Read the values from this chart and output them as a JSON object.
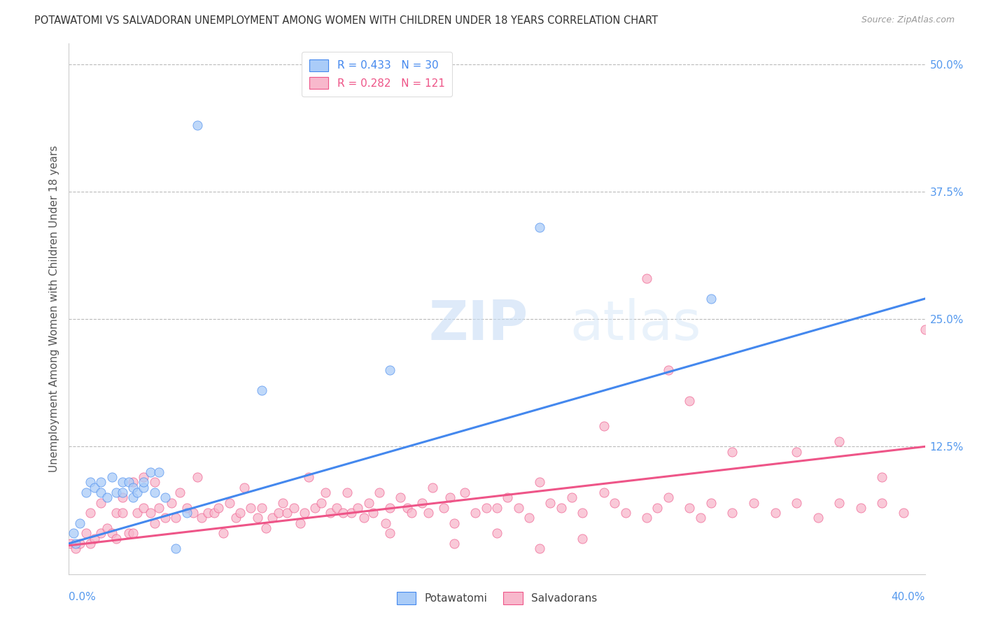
{
  "title": "POTAWATOMI VS SALVADORAN UNEMPLOYMENT AMONG WOMEN WITH CHILDREN UNDER 18 YEARS CORRELATION CHART",
  "source": "Source: ZipAtlas.com",
  "ylabel": "Unemployment Among Women with Children Under 18 years",
  "xlabel_bottom_left": "0.0%",
  "xlabel_bottom_right": "40.0%",
  "right_ytick_labels": [
    "50.0%",
    "37.5%",
    "25.0%",
    "12.5%"
  ],
  "right_ytick_values": [
    0.5,
    0.375,
    0.25,
    0.125
  ],
  "xlim": [
    0.0,
    0.4
  ],
  "ylim": [
    0.0,
    0.52
  ],
  "legend_blue_label": "R = 0.433   N = 30",
  "legend_pink_label": "R = 0.282   N = 121",
  "watermark_zip": "ZIP",
  "watermark_atlas": "atlas",
  "blue_color": "#aaccf8",
  "pink_color": "#f8b8cc",
  "blue_line_color": "#4488ee",
  "pink_line_color": "#ee5588",
  "background_color": "#ffffff",
  "grid_color": "#bbbbbb",
  "title_color": "#333333",
  "axis_label_color": "#5599ee",
  "blue_line_start_y": 0.03,
  "blue_line_end_y": 0.27,
  "pink_line_start_y": 0.028,
  "pink_line_end_y": 0.125,
  "potawatomi_x": [
    0.002,
    0.003,
    0.005,
    0.008,
    0.01,
    0.012,
    0.015,
    0.015,
    0.018,
    0.02,
    0.022,
    0.025,
    0.025,
    0.028,
    0.03,
    0.03,
    0.032,
    0.035,
    0.035,
    0.038,
    0.04,
    0.042,
    0.045,
    0.05,
    0.055,
    0.06,
    0.09,
    0.15,
    0.22,
    0.3
  ],
  "potawatomi_y": [
    0.04,
    0.03,
    0.05,
    0.08,
    0.09,
    0.085,
    0.08,
    0.09,
    0.075,
    0.095,
    0.08,
    0.09,
    0.08,
    0.09,
    0.075,
    0.085,
    0.08,
    0.085,
    0.09,
    0.1,
    0.08,
    0.1,
    0.075,
    0.025,
    0.06,
    0.44,
    0.18,
    0.2,
    0.34,
    0.27
  ],
  "salvadoran_x": [
    0.001,
    0.003,
    0.005,
    0.008,
    0.01,
    0.01,
    0.012,
    0.015,
    0.015,
    0.018,
    0.02,
    0.022,
    0.022,
    0.025,
    0.025,
    0.028,
    0.03,
    0.03,
    0.032,
    0.035,
    0.035,
    0.038,
    0.04,
    0.04,
    0.042,
    0.045,
    0.048,
    0.05,
    0.052,
    0.055,
    0.058,
    0.06,
    0.062,
    0.065,
    0.068,
    0.07,
    0.072,
    0.075,
    0.078,
    0.08,
    0.082,
    0.085,
    0.088,
    0.09,
    0.092,
    0.095,
    0.098,
    0.1,
    0.102,
    0.105,
    0.108,
    0.11,
    0.112,
    0.115,
    0.118,
    0.12,
    0.122,
    0.125,
    0.128,
    0.13,
    0.132,
    0.135,
    0.138,
    0.14,
    0.142,
    0.145,
    0.148,
    0.15,
    0.155,
    0.158,
    0.16,
    0.165,
    0.168,
    0.17,
    0.175,
    0.178,
    0.18,
    0.185,
    0.19,
    0.195,
    0.2,
    0.205,
    0.21,
    0.215,
    0.22,
    0.225,
    0.23,
    0.235,
    0.24,
    0.25,
    0.255,
    0.26,
    0.27,
    0.275,
    0.28,
    0.29,
    0.295,
    0.3,
    0.31,
    0.32,
    0.33,
    0.34,
    0.35,
    0.36,
    0.37,
    0.38,
    0.39,
    0.18,
    0.2,
    0.22,
    0.24,
    0.27,
    0.29,
    0.31,
    0.34,
    0.36,
    0.38,
    0.4,
    0.25,
    0.28,
    0.15
  ],
  "salvadoran_y": [
    0.03,
    0.025,
    0.03,
    0.04,
    0.03,
    0.06,
    0.035,
    0.04,
    0.07,
    0.045,
    0.04,
    0.06,
    0.035,
    0.06,
    0.075,
    0.04,
    0.04,
    0.09,
    0.06,
    0.065,
    0.095,
    0.06,
    0.05,
    0.09,
    0.065,
    0.055,
    0.07,
    0.055,
    0.08,
    0.065,
    0.06,
    0.095,
    0.055,
    0.06,
    0.06,
    0.065,
    0.04,
    0.07,
    0.055,
    0.06,
    0.085,
    0.065,
    0.055,
    0.065,
    0.045,
    0.055,
    0.06,
    0.07,
    0.06,
    0.065,
    0.05,
    0.06,
    0.095,
    0.065,
    0.07,
    0.08,
    0.06,
    0.065,
    0.06,
    0.08,
    0.06,
    0.065,
    0.055,
    0.07,
    0.06,
    0.08,
    0.05,
    0.065,
    0.075,
    0.065,
    0.06,
    0.07,
    0.06,
    0.085,
    0.065,
    0.075,
    0.05,
    0.08,
    0.06,
    0.065,
    0.065,
    0.075,
    0.065,
    0.055,
    0.09,
    0.07,
    0.065,
    0.075,
    0.06,
    0.08,
    0.07,
    0.06,
    0.055,
    0.065,
    0.075,
    0.065,
    0.055,
    0.07,
    0.06,
    0.07,
    0.06,
    0.07,
    0.055,
    0.07,
    0.065,
    0.07,
    0.06,
    0.03,
    0.04,
    0.025,
    0.035,
    0.29,
    0.17,
    0.12,
    0.12,
    0.13,
    0.095,
    0.24,
    0.145,
    0.2,
    0.04
  ]
}
